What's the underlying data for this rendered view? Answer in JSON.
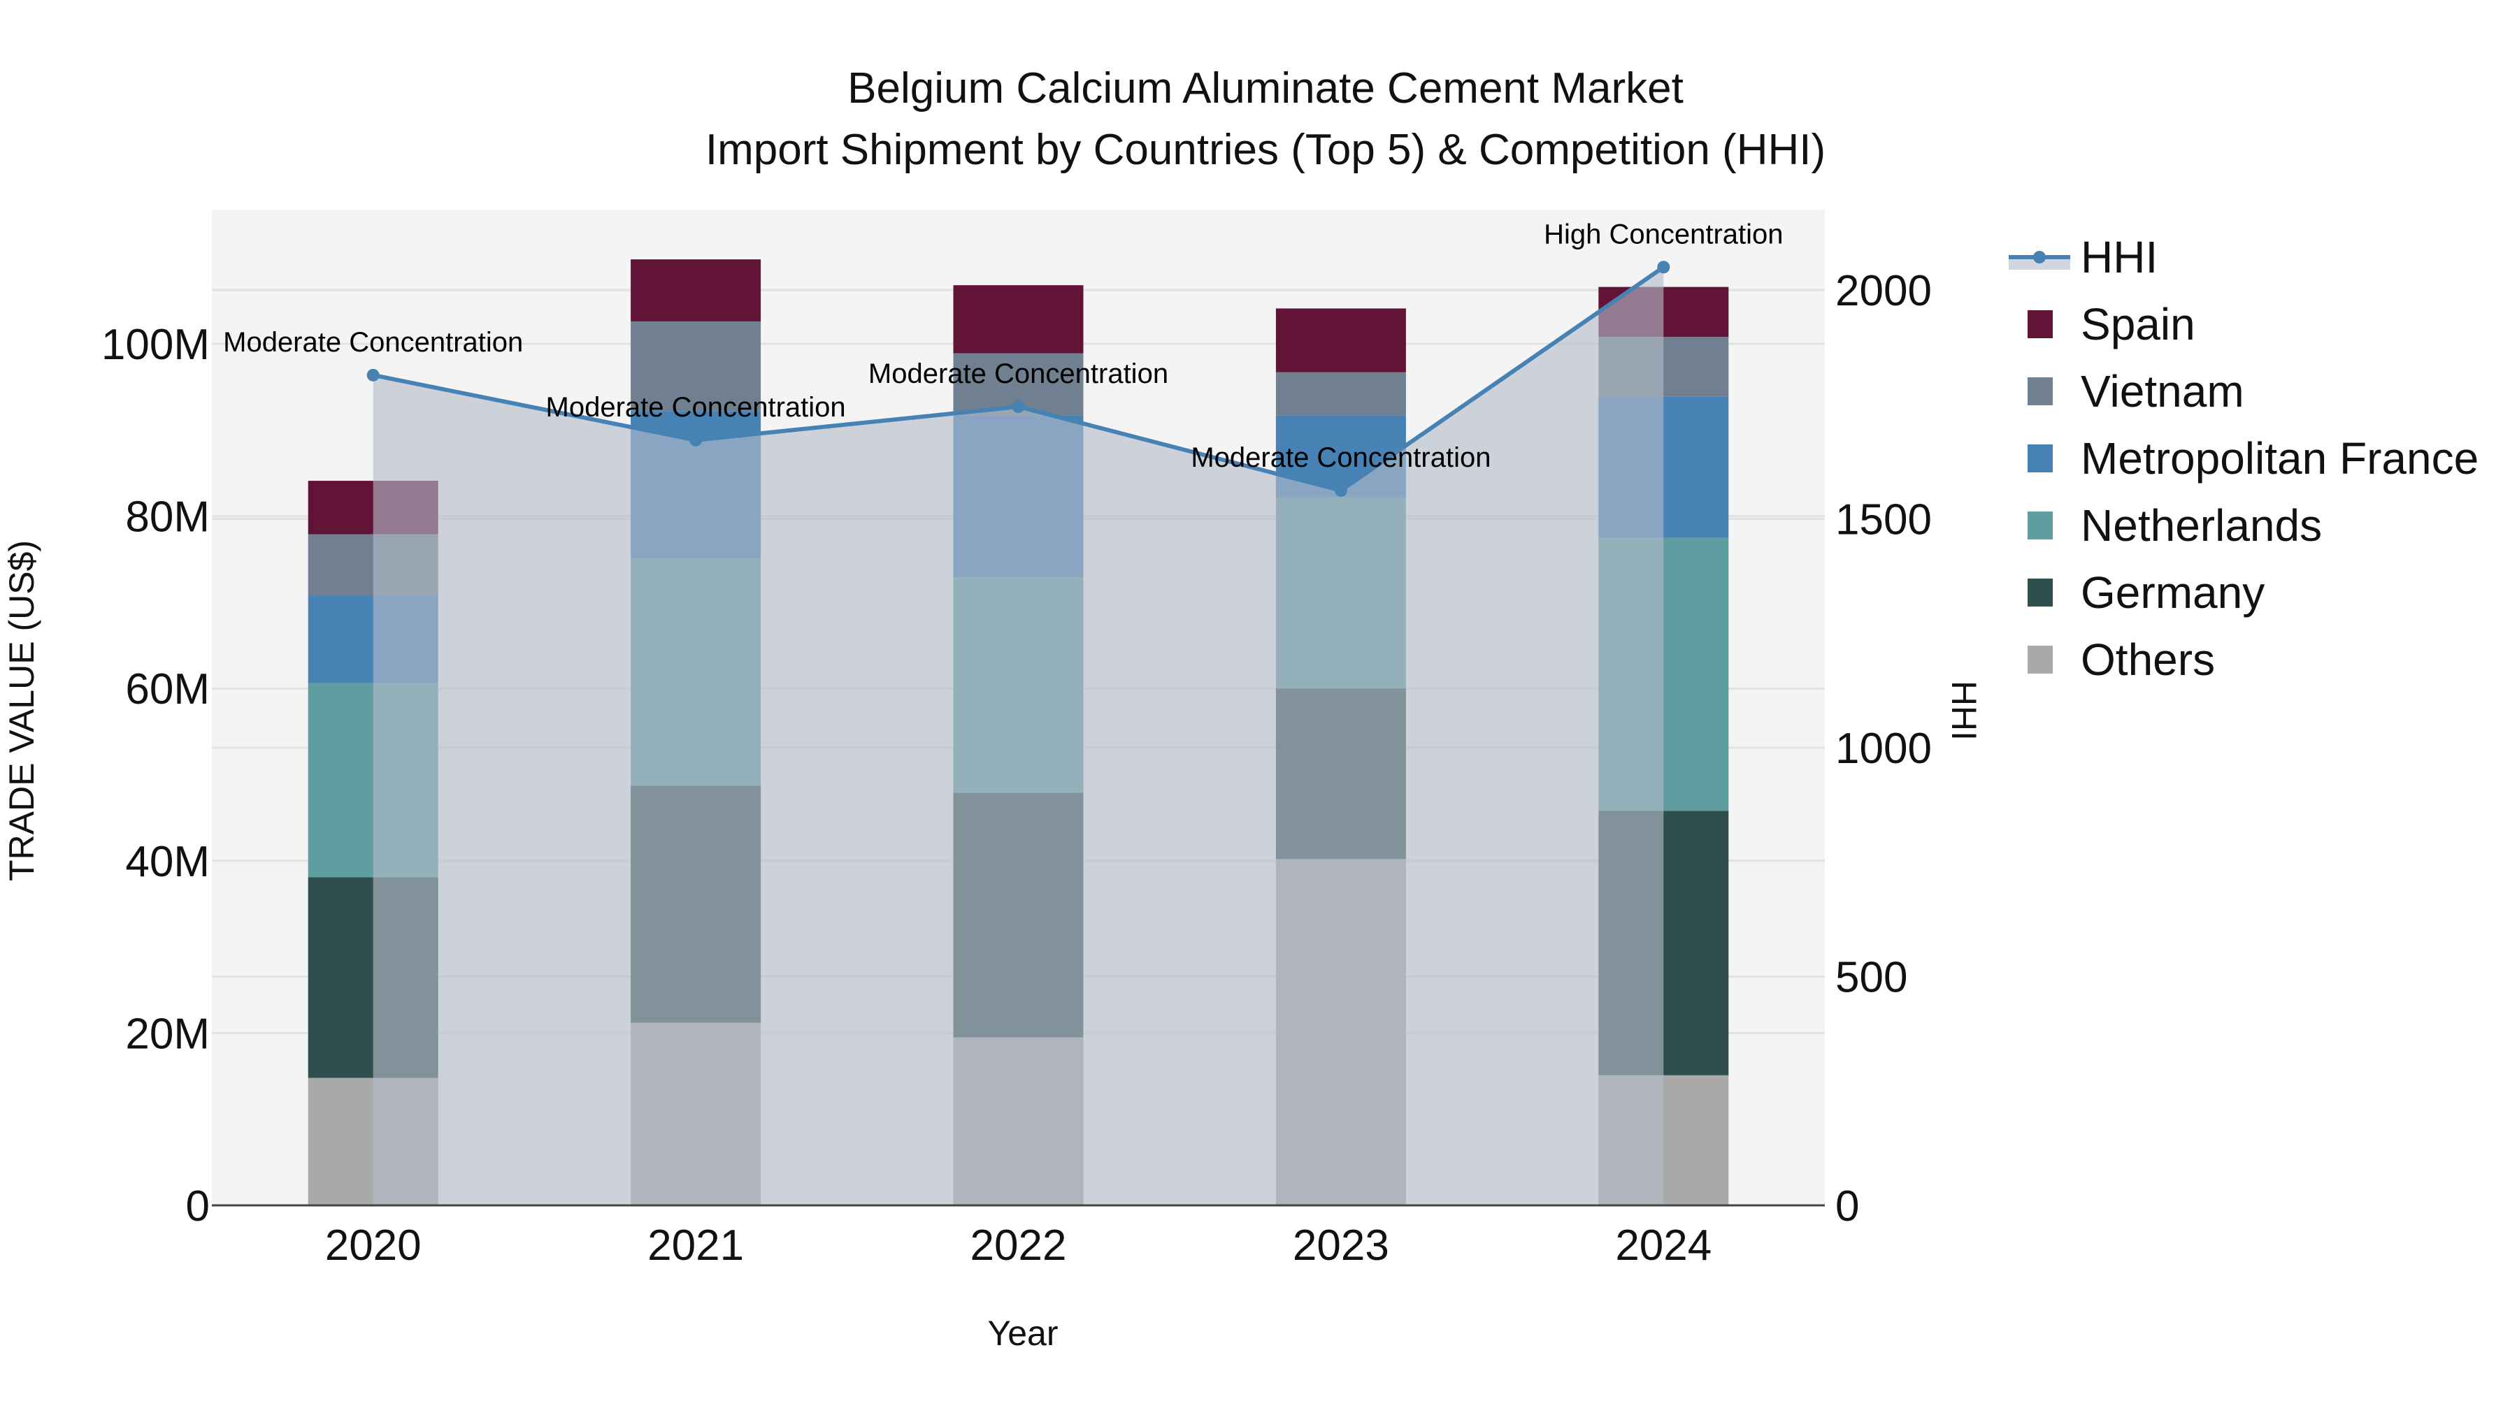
{
  "title": {
    "line1": "Belgium Calcium Aluminate Cement Market",
    "line2": "Import Shipment by Countries (Top 5) & Competition (HHI)"
  },
  "axes": {
    "x_title": "Year",
    "y_left_title": "TRADE VALUE (US$)",
    "y_right_title": "HHI",
    "y_left_ticks": [
      {
        "value": 0,
        "label": "0"
      },
      {
        "value": 20,
        "label": "20M"
      },
      {
        "value": 40,
        "label": "40M"
      },
      {
        "value": 60,
        "label": "60M"
      },
      {
        "value": 80,
        "label": "80M"
      },
      {
        "value": 100,
        "label": "100M"
      }
    ],
    "y_right_ticks": [
      {
        "value": 0,
        "label": "0"
      },
      {
        "value": 500,
        "label": "500"
      },
      {
        "value": 1000,
        "label": "1000"
      },
      {
        "value": 1500,
        "label": "1500"
      },
      {
        "value": 2000,
        "label": "2000"
      }
    ]
  },
  "legend": [
    {
      "name": "HHI",
      "type": "line",
      "color": "#4682B4"
    },
    {
      "name": "Spain",
      "type": "bar",
      "color": "#621436"
    },
    {
      "name": "Vietnam",
      "type": "bar",
      "color": "#708090"
    },
    {
      "name": "Metropolitan France",
      "type": "bar",
      "color": "#4682B4"
    },
    {
      "name": "Netherlands",
      "type": "bar",
      "color": "#5F9EA0"
    },
    {
      "name": "Germany",
      "type": "bar",
      "color": "#2F4F4F"
    },
    {
      "name": "Others",
      "type": "bar",
      "color": "#A9A9A9"
    }
  ],
  "chart_data": {
    "type": "bar",
    "stacked": true,
    "title": "Belgium Calcium Aluminate Cement Market — Import Shipment by Countries (Top 5) & Competition (HHI)",
    "xlabel": "Year",
    "ylabel": "TRADE VALUE (US$)",
    "y2label": "HHI",
    "categories": [
      "2020",
      "2021",
      "2022",
      "2023",
      "2024"
    ],
    "units": "US$ millions",
    "ylim": [
      0,
      116
    ],
    "y2lim": [
      0,
      2180
    ],
    "grid": true,
    "legend_position": "right",
    "series": [
      {
        "name": "Others",
        "color": "#A9A9A9",
        "values": [
          14.8,
          21.2,
          19.5,
          40.2,
          15.1
        ]
      },
      {
        "name": "Germany",
        "color": "#2F4F4F",
        "values": [
          23.3,
          27.5,
          28.4,
          19.8,
          30.7
        ]
      },
      {
        "name": "Netherlands",
        "color": "#5F9EA0",
        "values": [
          22.5,
          26.4,
          25.0,
          22.2,
          31.7
        ]
      },
      {
        "name": "Metropolitan France",
        "color": "#4682B4",
        "values": [
          10.2,
          17.1,
          18.8,
          9.5,
          16.4
        ]
      },
      {
        "name": "Vietnam",
        "color": "#708090",
        "values": [
          7.1,
          10.4,
          7.2,
          5.0,
          6.9
        ]
      },
      {
        "name": "Spain",
        "color": "#621436",
        "values": [
          6.2,
          7.2,
          7.9,
          7.4,
          5.8
        ]
      }
    ],
    "line_series": {
      "name": "HHI",
      "axis": "right",
      "color": "#4682B4",
      "fill": "tozeroy",
      "values": [
        1814,
        1672,
        1745,
        1562,
        2050
      ],
      "annotations": [
        "Moderate Concentration",
        "Moderate Concentration",
        "Moderate Concentration",
        "Moderate Concentration",
        "High Concentration"
      ]
    }
  }
}
